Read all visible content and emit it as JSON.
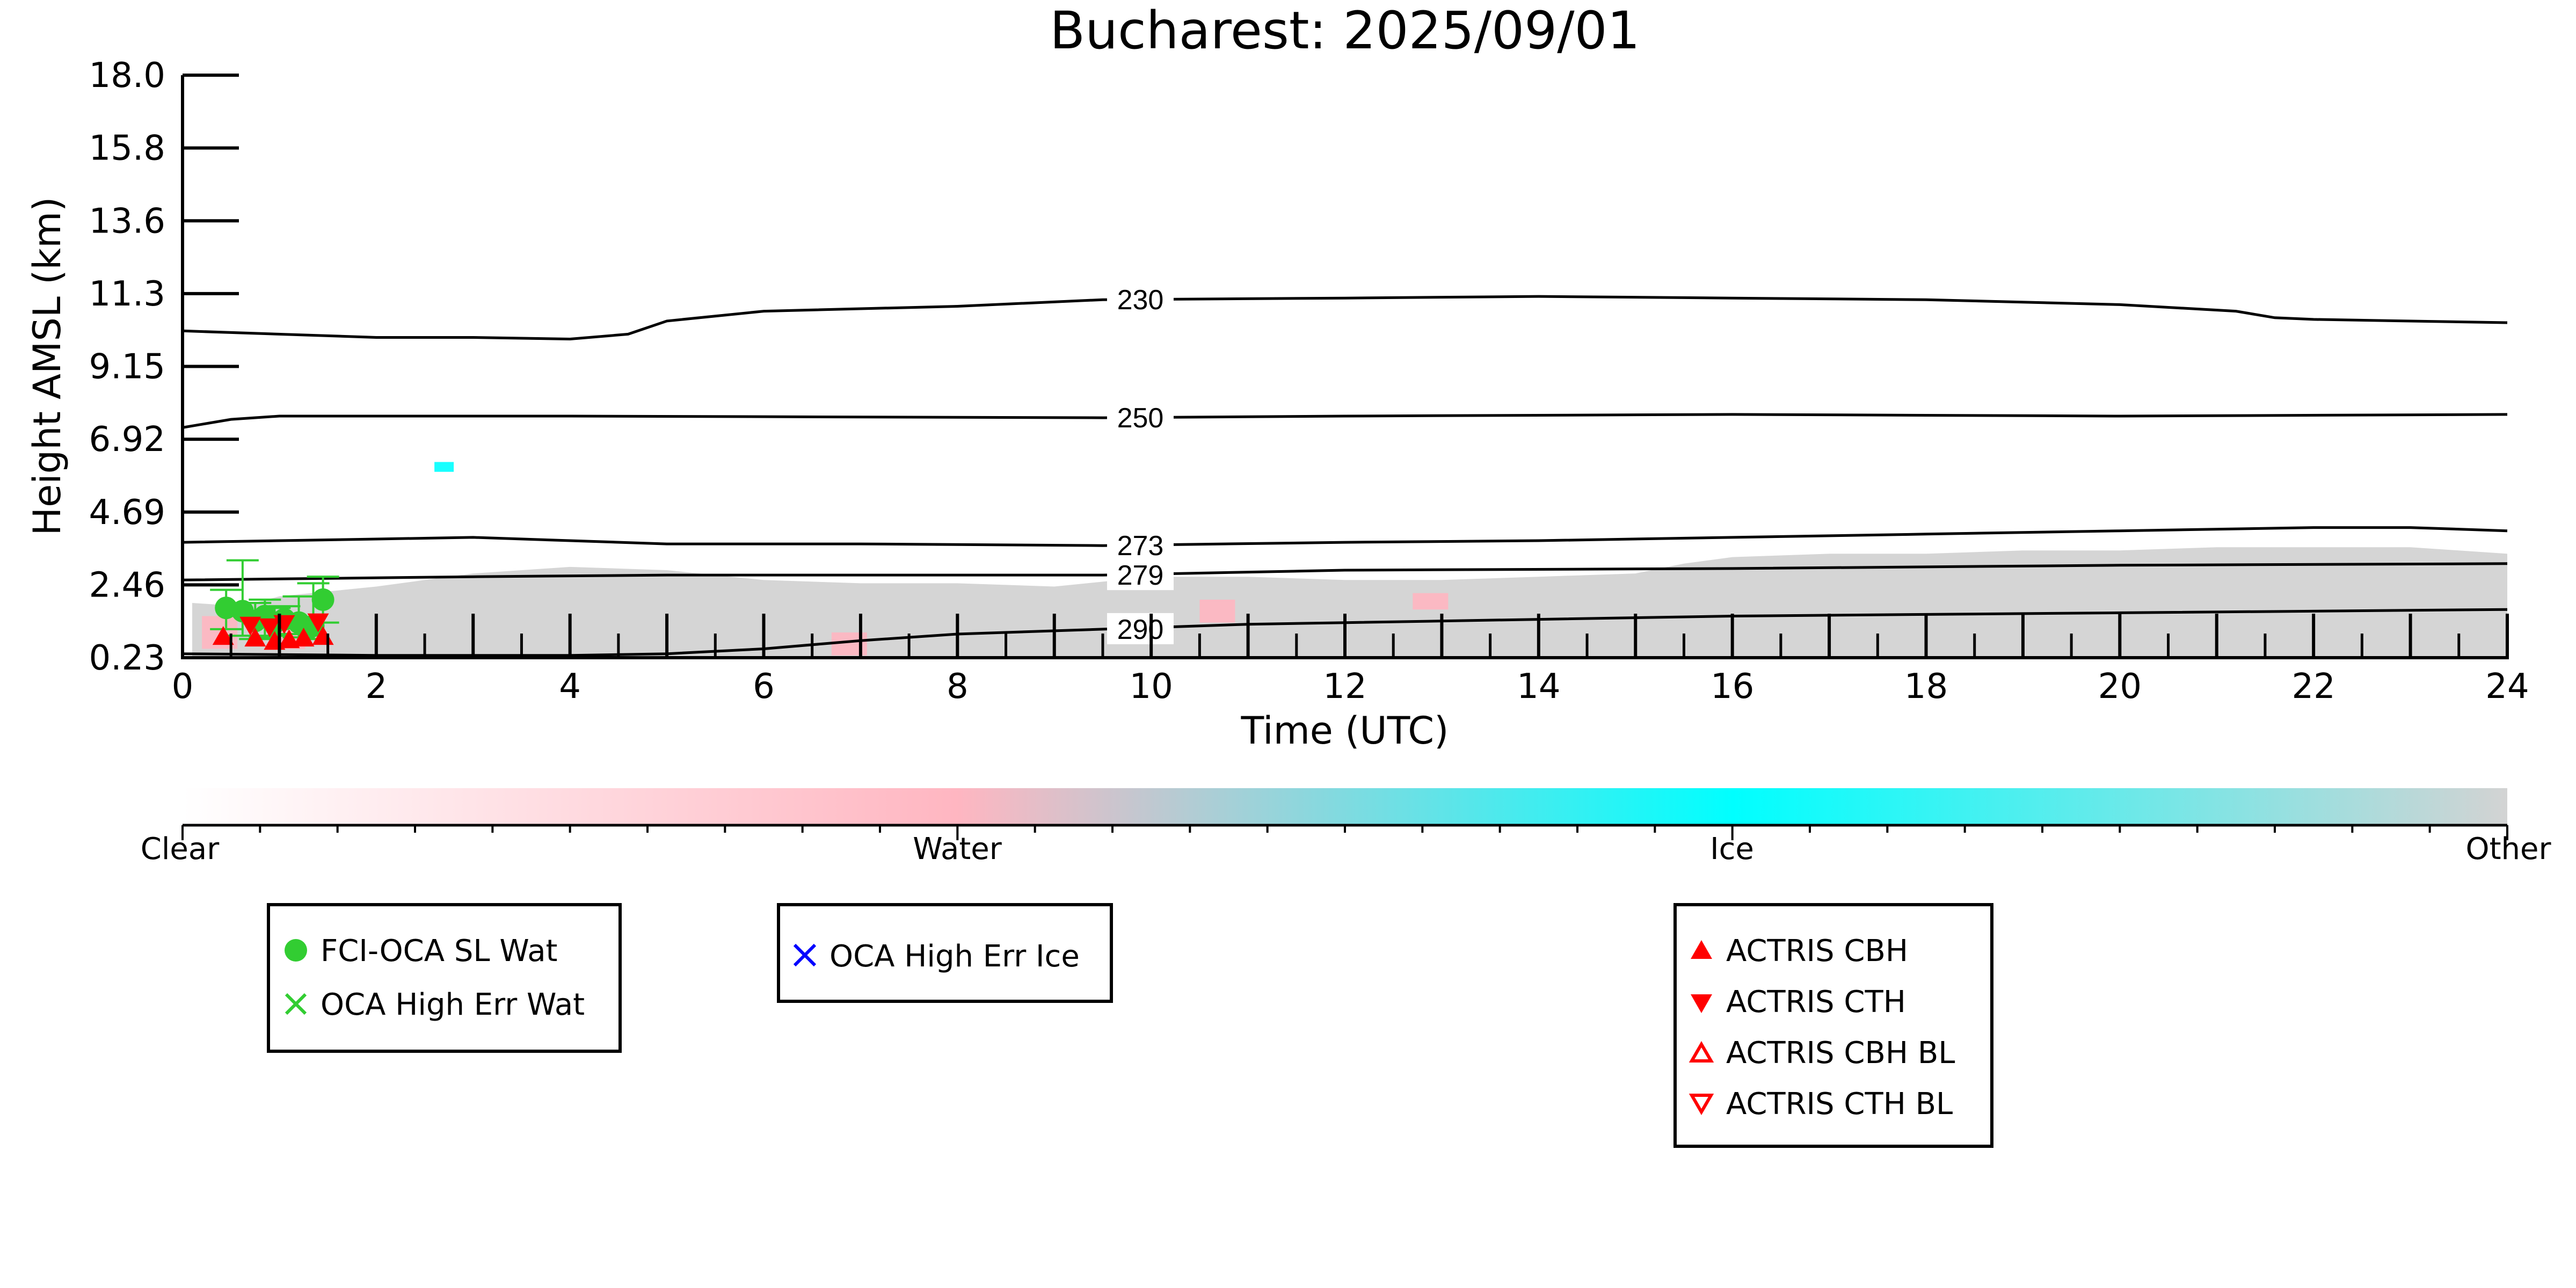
{
  "chart_data": {
    "type": "scatter",
    "title": "Bucharest: 2025/09/01",
    "xlabel": "Time (UTC)",
    "ylabel": "Height AMSL (km)",
    "xlim": [
      0,
      24
    ],
    "ylim": [
      0.23,
      18.0
    ],
    "x_ticks": [
      0,
      2,
      4,
      6,
      8,
      10,
      12,
      14,
      16,
      18,
      20,
      22,
      24
    ],
    "y_ticks": [
      "0.23",
      "2.46",
      "4.69",
      "6.92",
      "9.15",
      "11.3",
      "13.6",
      "15.8",
      "18.0"
    ],
    "grid": false,
    "background_layers": [
      {
        "class": "Other",
        "color": "#d3d3d3",
        "description_units": "km",
        "top_profile": [
          [
            0.1,
            1.9
          ],
          [
            0.6,
            1.8
          ],
          [
            1,
            2.1
          ],
          [
            2,
            2.4
          ],
          [
            3,
            2.8
          ],
          [
            4,
            3.0
          ],
          [
            5,
            2.9
          ],
          [
            6,
            2.6
          ],
          [
            7,
            2.5
          ],
          [
            8,
            2.5
          ],
          [
            9,
            2.4
          ],
          [
            10,
            2.7
          ],
          [
            11,
            2.7
          ],
          [
            12,
            2.6
          ],
          [
            13,
            2.6
          ],
          [
            14,
            2.7
          ],
          [
            15,
            2.8
          ],
          [
            15.5,
            3.1
          ],
          [
            16,
            3.3
          ],
          [
            17,
            3.4
          ],
          [
            18,
            3.4
          ],
          [
            19,
            3.5
          ],
          [
            20,
            3.5
          ],
          [
            21,
            3.6
          ],
          [
            22,
            3.6
          ],
          [
            23,
            3.6
          ],
          [
            24,
            3.4
          ]
        ]
      },
      {
        "class": "Water",
        "color": "#ffb6c1",
        "patches": [
          [
            0.3,
            0.5,
            1.5
          ],
          [
            1.0,
            0.5,
            1.2
          ],
          [
            6.8,
            0.3,
            1.0
          ],
          [
            10.6,
            1.3,
            2.0
          ],
          [
            12.8,
            1.7,
            2.2
          ]
        ]
      },
      {
        "class": "Ice",
        "color": "#00ffff",
        "patches": [
          [
            2.7,
            5.9,
            6.2
          ]
        ]
      }
    ],
    "isotherms": [
      {
        "label": "230",
        "points": [
          [
            0,
            10.2
          ],
          [
            2,
            10.0
          ],
          [
            3,
            10.0
          ],
          [
            4,
            9.95
          ],
          [
            4.6,
            10.1
          ],
          [
            5,
            10.5
          ],
          [
            6,
            10.8
          ],
          [
            8,
            10.95
          ],
          [
            9.5,
            11.15
          ],
          [
            12,
            11.2
          ],
          [
            14,
            11.25
          ],
          [
            16,
            11.2
          ],
          [
            18,
            11.15
          ],
          [
            20,
            11.0
          ],
          [
            21.2,
            10.8
          ],
          [
            21.6,
            10.6
          ],
          [
            22,
            10.55
          ],
          [
            24,
            10.45
          ]
        ]
      },
      {
        "label": "250",
        "points": [
          [
            0,
            7.25
          ],
          [
            0.5,
            7.5
          ],
          [
            1,
            7.6
          ],
          [
            4,
            7.6
          ],
          [
            9.5,
            7.55
          ],
          [
            12,
            7.6
          ],
          [
            16,
            7.65
          ],
          [
            20,
            7.6
          ],
          [
            24,
            7.65
          ]
        ]
      },
      {
        "label": "273",
        "points": [
          [
            0,
            3.75
          ],
          [
            2,
            3.85
          ],
          [
            3,
            3.9
          ],
          [
            4,
            3.8
          ],
          [
            5,
            3.7
          ],
          [
            7,
            3.7
          ],
          [
            9.5,
            3.65
          ],
          [
            12,
            3.75
          ],
          [
            14,
            3.8
          ],
          [
            16,
            3.9
          ],
          [
            18,
            4.0
          ],
          [
            20,
            4.1
          ],
          [
            22,
            4.2
          ],
          [
            23,
            4.2
          ],
          [
            24,
            4.1
          ]
        ]
      },
      {
        "label": "279",
        "points": [
          [
            0,
            2.6
          ],
          [
            3,
            2.7
          ],
          [
            5,
            2.75
          ],
          [
            7,
            2.75
          ],
          [
            9.5,
            2.75
          ],
          [
            12,
            2.9
          ],
          [
            16,
            2.95
          ],
          [
            20,
            3.05
          ],
          [
            24,
            3.1
          ]
        ]
      },
      {
        "label": "290",
        "points": [
          [
            0,
            0.35
          ],
          [
            2,
            0.3
          ],
          [
            4,
            0.3
          ],
          [
            5,
            0.35
          ],
          [
            6,
            0.5
          ],
          [
            7,
            0.75
          ],
          [
            8,
            0.95
          ],
          [
            9.5,
            1.1
          ],
          [
            11,
            1.25
          ],
          [
            12,
            1.3
          ],
          [
            14,
            1.4
          ],
          [
            16,
            1.5
          ],
          [
            18,
            1.55
          ],
          [
            20,
            1.6
          ],
          [
            24,
            1.7
          ]
        ]
      }
    ],
    "series": [
      {
        "name": "FCI-OCA SL Wat",
        "marker": "circle",
        "color": "#32cd32",
        "points": [
          [
            0.45,
            1.75,
            1.1,
            2.3
          ],
          [
            0.62,
            1.65,
            0.9,
            3.2
          ],
          [
            0.75,
            1.35,
            0.8,
            1.9
          ],
          [
            0.85,
            1.5,
            0.85,
            2.0
          ],
          [
            0.95,
            1.3,
            0.9,
            1.75
          ],
          [
            1.05,
            1.4,
            0.95,
            1.8
          ],
          [
            1.2,
            1.3,
            0.85,
            2.1
          ],
          [
            1.35,
            1.2,
            0.8,
            2.5
          ],
          [
            1.45,
            2.0,
            1.3,
            2.7
          ]
        ]
      },
      {
        "name": "OCA High Err Wat",
        "marker": "x",
        "color": "#32cd32",
        "points": []
      },
      {
        "name": "OCA High Err Ice",
        "marker": "x",
        "color": "#0000ff",
        "points": []
      },
      {
        "name": "ACTRIS CBH",
        "marker": "triangle-up",
        "color": "#ff0000",
        "points": [
          [
            0.42,
            0.9
          ],
          [
            0.75,
            0.85
          ],
          [
            0.95,
            0.75
          ],
          [
            1.1,
            0.8
          ],
          [
            1.25,
            0.85
          ],
          [
            1.45,
            0.9
          ]
        ]
      },
      {
        "name": "ACTRIS CTH",
        "marker": "triangle-down",
        "color": "#ff0000",
        "points": [
          [
            0.7,
            1.2
          ],
          [
            0.9,
            1.15
          ],
          [
            1.05,
            1.25
          ],
          [
            1.4,
            1.3
          ]
        ]
      },
      {
        "name": "ACTRIS CBH BL",
        "marker": "triangle-up-open",
        "color": "#ff0000",
        "points": []
      },
      {
        "name": "ACTRIS CTH BL",
        "marker": "triangle-down-open",
        "color": "#ff0000",
        "points": []
      }
    ],
    "colorbar": {
      "labels": [
        "Clear",
        "Water",
        "Ice",
        "Other"
      ],
      "colors": [
        "#ffffff",
        "#ffb6c1",
        "#00ffff",
        "#d3d3d3"
      ]
    },
    "legends": [
      {
        "entries": [
          "FCI-OCA SL Wat",
          "OCA High Err Wat"
        ]
      },
      {
        "entries": [
          "OCA High Err Ice"
        ]
      },
      {
        "entries": [
          "ACTRIS CBH",
          "ACTRIS CTH",
          "ACTRIS CBH BL",
          "ACTRIS CTH BL"
        ]
      }
    ]
  }
}
